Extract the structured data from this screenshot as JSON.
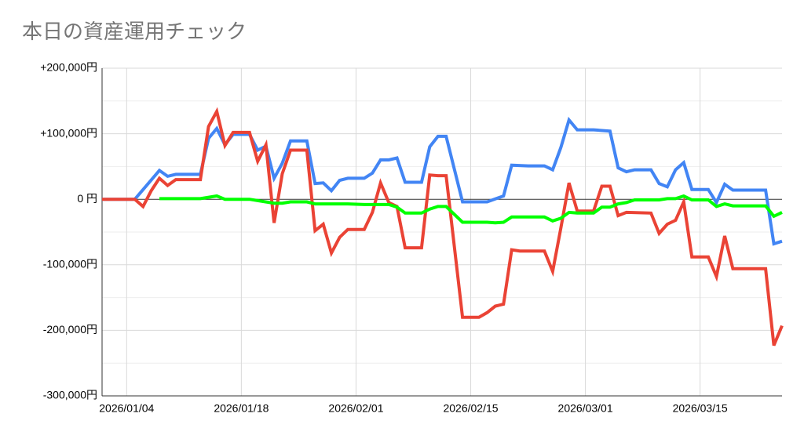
{
  "chart_data": {
    "type": "line",
    "title": "本日の資産運用チェック",
    "xlim": [
      "2026/01/01",
      "2026/03/25"
    ],
    "xticks": [
      "2026/01/04",
      "2026/01/18",
      "2026/02/01",
      "2026/02/15",
      "2026/03/01",
      "2026/03/15"
    ],
    "ylim": [
      -300000,
      200000
    ],
    "yticks": [
      {
        "value": -300000,
        "label": "-300,000円"
      },
      {
        "value": -200000,
        "label": "-200,000円"
      },
      {
        "value": -100000,
        "label": "-100,000円"
      },
      {
        "value": 0,
        "label": "0 円"
      },
      {
        "value": 100000,
        "label": "+100,000円"
      },
      {
        "value": 200000,
        "label": "+200,000円"
      }
    ],
    "minor_yticks": [
      -250000,
      -150000,
      -50000,
      50000,
      150000
    ],
    "grid": true,
    "series": [
      {
        "color": "#4285f4",
        "x": [
          "2026/01/01",
          "2026/01/05",
          "2026/01/08",
          "2026/01/09",
          "2026/01/10",
          "2026/01/13",
          "2026/01/14",
          "2026/01/15",
          "2026/01/16",
          "2026/01/17",
          "2026/01/19",
          "2026/01/20",
          "2026/01/21",
          "2026/01/22",
          "2026/01/23",
          "2026/01/24",
          "2026/01/26",
          "2026/01/27",
          "2026/01/28",
          "2026/01/29",
          "2026/01/30",
          "2026/01/31",
          "2026/02/02",
          "2026/02/03",
          "2026/02/04",
          "2026/02/05",
          "2026/02/06",
          "2026/02/07",
          "2026/02/09",
          "2026/02/10",
          "2026/02/11",
          "2026/02/12",
          "2026/02/14",
          "2026/02/17",
          "2026/02/19",
          "2026/02/20",
          "2026/02/22",
          "2026/02/24",
          "2026/02/25",
          "2026/02/26",
          "2026/02/27",
          "2026/02/28",
          "2026/03/02",
          "2026/03/04",
          "2026/03/05",
          "2026/03/06",
          "2026/03/07",
          "2026/03/09",
          "2026/03/10",
          "2026/03/11",
          "2026/03/12",
          "2026/03/13",
          "2026/03/14",
          "2026/03/16",
          "2026/03/17",
          "2026/03/18",
          "2026/03/19",
          "2026/03/23",
          "2026/03/24",
          "2026/03/25"
        ],
        "values": [
          0,
          0,
          44000,
          35000,
          38000,
          38000,
          93000,
          108000,
          83000,
          99000,
          99000,
          75000,
          81000,
          32000,
          55000,
          89000,
          89000,
          24000,
          25000,
          13000,
          29000,
          32000,
          32000,
          40000,
          60000,
          60000,
          63000,
          26000,
          26000,
          80000,
          96000,
          96000,
          -4000,
          -4000,
          5000,
          52000,
          51000,
          51000,
          45000,
          79000,
          121000,
          106000,
          106000,
          104000,
          48000,
          42000,
          45000,
          45000,
          24000,
          19000,
          45000,
          56000,
          15000,
          15000,
          -5000,
          23000,
          14000,
          14000,
          -68000,
          -64000
        ]
      },
      {
        "color": "#ea4335",
        "x": [
          "2026/01/01",
          "2026/01/05",
          "2026/01/06",
          "2026/01/07",
          "2026/01/08",
          "2026/01/09",
          "2026/01/10",
          "2026/01/13",
          "2026/01/14",
          "2026/01/15",
          "2026/01/16",
          "2026/01/17",
          "2026/01/19",
          "2026/01/20",
          "2026/01/21",
          "2026/01/22",
          "2026/01/23",
          "2026/01/24",
          "2026/01/26",
          "2026/01/27",
          "2026/01/28",
          "2026/01/29",
          "2026/01/30",
          "2026/01/31",
          "2026/02/02",
          "2026/02/03",
          "2026/02/04",
          "2026/02/05",
          "2026/02/06",
          "2026/02/07",
          "2026/02/09",
          "2026/02/10",
          "2026/02/11",
          "2026/02/12",
          "2026/02/14",
          "2026/02/16",
          "2026/02/17",
          "2026/02/18",
          "2026/02/19",
          "2026/02/20",
          "2026/02/21",
          "2026/02/24",
          "2026/02/25",
          "2026/02/26",
          "2026/02/27",
          "2026/02/28",
          "2026/03/02",
          "2026/03/03",
          "2026/03/04",
          "2026/03/05",
          "2026/03/06",
          "2026/03/09",
          "2026/03/10",
          "2026/03/11",
          "2026/03/12",
          "2026/03/13",
          "2026/03/14",
          "2026/03/16",
          "2026/03/17",
          "2026/03/18",
          "2026/03/19",
          "2026/03/23",
          "2026/03/24",
          "2026/03/25"
        ],
        "values": [
          0,
          0,
          -11000,
          13000,
          32000,
          21000,
          30000,
          30000,
          111000,
          134000,
          82000,
          102000,
          102000,
          58000,
          83000,
          -36000,
          39000,
          75000,
          75000,
          -48000,
          -38000,
          -82000,
          -58000,
          -46000,
          -46000,
          -20000,
          25000,
          -5000,
          -11000,
          -74000,
          -74000,
          37000,
          36000,
          36000,
          -180000,
          -180000,
          -173000,
          -163000,
          -160000,
          -77000,
          -79000,
          -79000,
          -110000,
          -44000,
          25000,
          -18000,
          -18000,
          20000,
          20000,
          -25000,
          -20000,
          -21000,
          -52000,
          -38000,
          -32000,
          -4000,
          -88000,
          -88000,
          -118000,
          -56000,
          -106000,
          -106000,
          -223000,
          -193000
        ]
      },
      {
        "color": "#00ff00",
        "x": [
          "2026/01/08",
          "2026/01/13",
          "2026/01/15",
          "2026/01/16",
          "2026/01/19",
          "2026/01/20",
          "2026/01/22",
          "2026/01/23",
          "2026/01/24",
          "2026/01/26",
          "2026/01/27",
          "2026/01/31",
          "2026/02/02",
          "2026/02/05",
          "2026/02/06",
          "2026/02/07",
          "2026/02/09",
          "2026/02/10",
          "2026/02/11",
          "2026/02/12",
          "2026/02/14",
          "2026/02/17",
          "2026/02/18",
          "2026/02/19",
          "2026/02/20",
          "2026/02/24",
          "2026/02/25",
          "2026/02/26",
          "2026/02/27",
          "2026/02/28",
          "2026/03/02",
          "2026/03/03",
          "2026/03/04",
          "2026/03/05",
          "2026/03/06",
          "2026/03/07",
          "2026/03/09",
          "2026/03/10",
          "2026/03/11",
          "2026/03/12",
          "2026/03/13",
          "2026/03/14",
          "2026/03/16",
          "2026/03/17",
          "2026/03/18",
          "2026/03/19",
          "2026/03/23",
          "2026/03/24",
          "2026/03/25"
        ],
        "values": [
          1000,
          1000,
          5000,
          0,
          0,
          -2000,
          -6000,
          -6000,
          -4000,
          -4000,
          -7000,
          -7000,
          -8000,
          -8000,
          -12000,
          -21000,
          -21000,
          -15000,
          -11000,
          -11000,
          -35000,
          -35000,
          -36000,
          -35000,
          -27000,
          -27000,
          -33000,
          -29000,
          -20000,
          -21000,
          -21000,
          -12000,
          -12000,
          -7000,
          -5000,
          -1000,
          -1000,
          -1000,
          1000,
          1000,
          5000,
          -1000,
          -1000,
          -11000,
          -7000,
          -10000,
          -10000,
          -26000,
          -20000
        ]
      }
    ]
  }
}
